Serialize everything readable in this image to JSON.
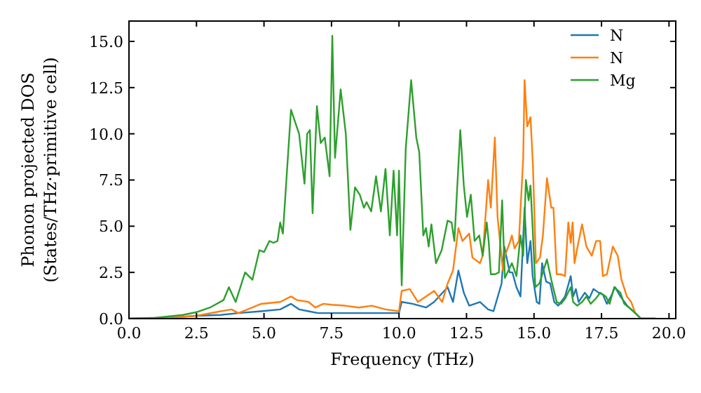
{
  "chart_data": {
    "type": "line",
    "xlabel": "Frequency (THz)",
    "ylabel": "Phonon projected DOS\n(States/THz·primitive cell)",
    "xlim": [
      0,
      20.25
    ],
    "ylim": [
      0,
      16.1
    ],
    "xticks": [
      {
        "value": 0,
        "label": "0.0"
      },
      {
        "value": 2.5,
        "label": "2.5"
      },
      {
        "value": 5,
        "label": "5.0"
      },
      {
        "value": 7.5,
        "label": "7.5"
      },
      {
        "value": 10,
        "label": "10.0"
      },
      {
        "value": 12.5,
        "label": "12.5"
      },
      {
        "value": 15,
        "label": "15.0"
      },
      {
        "value": 17.5,
        "label": "17.5"
      },
      {
        "value": 20,
        "label": "20.0"
      }
    ],
    "yticks": [
      {
        "value": 0,
        "label": "0.0"
      },
      {
        "value": 2.5,
        "label": "2.5"
      },
      {
        "value": 5,
        "label": "5.0"
      },
      {
        "value": 7.5,
        "label": "7.5"
      },
      {
        "value": 10,
        "label": "10.0"
      },
      {
        "value": 12.5,
        "label": "12.5"
      },
      {
        "value": 15,
        "label": "15.0"
      }
    ],
    "legend": "top right",
    "grid": false,
    "series": [
      {
        "name": "N",
        "color": "#1f77b4",
        "x": [
          0,
          1.5,
          2.5,
          3.4,
          4.05,
          4.9,
          5.6,
          6.0,
          6.3,
          6.65,
          7.0,
          7.5,
          8.0,
          9.0,
          10.0,
          10.1,
          10.5,
          11.0,
          11.3,
          11.8,
          12.0,
          12.2,
          12.4,
          12.6,
          13.0,
          13.3,
          13.5,
          13.8,
          13.9,
          14.1,
          14.2,
          14.35,
          14.5,
          14.65,
          14.75,
          14.87,
          14.95,
          15.1,
          15.2,
          15.3,
          15.45,
          15.6,
          15.75,
          15.9,
          16.0,
          16.15,
          16.36,
          16.45,
          16.55,
          16.65,
          16.88,
          17.05,
          17.2,
          17.4,
          17.55,
          17.7,
          17.85,
          18.0,
          18.2,
          18.45,
          18.75,
          18.96,
          19.5
        ],
        "values": [
          0,
          0.05,
          0.15,
          0.2,
          0.3,
          0.4,
          0.5,
          0.8,
          0.5,
          0.4,
          0.3,
          0.3,
          0.3,
          0.3,
          0.3,
          0.9,
          0.8,
          0.6,
          0.9,
          1.7,
          0.9,
          2.6,
          1.4,
          0.7,
          0.9,
          0.5,
          0.4,
          1.9,
          3.9,
          2.5,
          2.5,
          1.7,
          1.2,
          6.0,
          3.0,
          4.2,
          2.3,
          0.9,
          0.8,
          3.0,
          2.0,
          1.9,
          0.9,
          0.7,
          0.9,
          1.2,
          2.3,
          1.2,
          1.6,
          0.9,
          1.4,
          1.1,
          1.6,
          1.4,
          1.3,
          0.8,
          1.2,
          1.7,
          1.2,
          0.7,
          0.3,
          0,
          0
        ]
      },
      {
        "name": "N",
        "color": "#ff7f0e",
        "x": [
          0,
          1.5,
          2.5,
          3.4,
          3.8,
          4.05,
          4.57,
          4.9,
          5.6,
          6.0,
          6.23,
          6.65,
          6.9,
          7.2,
          7.5,
          8.0,
          8.5,
          9.0,
          9.5,
          10.0,
          10.1,
          10.4,
          10.7,
          11.0,
          11.3,
          11.6,
          11.8,
          12.0,
          12.2,
          12.35,
          12.6,
          12.72,
          13.0,
          13.1,
          13.3,
          13.4,
          13.55,
          13.65,
          13.85,
          13.92,
          14.1,
          14.18,
          14.28,
          14.44,
          14.6,
          14.65,
          14.75,
          14.87,
          14.96,
          15.07,
          15.22,
          15.33,
          15.48,
          15.64,
          15.72,
          15.84,
          16.0,
          16.15,
          16.27,
          16.36,
          16.43,
          16.5,
          16.6,
          16.78,
          16.94,
          17.14,
          17.3,
          17.45,
          17.55,
          17.7,
          17.92,
          18.1,
          18.24,
          18.44,
          18.6,
          18.75,
          18.96,
          19.5
        ],
        "values": [
          0,
          0.05,
          0.15,
          0.4,
          0.5,
          0.3,
          0.6,
          0.8,
          0.9,
          1.2,
          1.0,
          0.9,
          0.6,
          0.8,
          0.75,
          0.7,
          0.6,
          0.7,
          0.5,
          0.4,
          1.5,
          1.6,
          0.9,
          1.2,
          1.5,
          0.9,
          1.9,
          2.6,
          4.9,
          4.2,
          4.6,
          3.3,
          3.0,
          3.4,
          7.5,
          6.0,
          9.8,
          5.5,
          2.6,
          3.4,
          4.1,
          4.5,
          3.8,
          4.2,
          8.7,
          12.9,
          10.4,
          10.9,
          8.3,
          3.0,
          3.3,
          4.5,
          7.6,
          6.0,
          6.0,
          2.4,
          2.4,
          2.3,
          5.2,
          4.1,
          5.2,
          3.0,
          3.8,
          5.1,
          3.9,
          3.4,
          4.2,
          4.2,
          2.3,
          2.4,
          3.9,
          3.4,
          2.1,
          1.2,
          0.9,
          0.3,
          0,
          0
        ]
      },
      {
        "name": "Mg",
        "color": "#2ca02c",
        "x": [
          0,
          1,
          2,
          2.5,
          3,
          3.5,
          3.7,
          3.95,
          4.3,
          4.57,
          4.83,
          5.0,
          5.2,
          5.35,
          5.5,
          5.6,
          5.7,
          6.0,
          6.3,
          6.5,
          6.6,
          6.7,
          6.8,
          6.96,
          7.1,
          7.25,
          7.43,
          7.53,
          7.63,
          7.84,
          8.03,
          8.2,
          8.37,
          8.55,
          8.7,
          8.8,
          8.97,
          9.15,
          9.33,
          9.5,
          9.66,
          9.8,
          9.93,
          10.0,
          10.1,
          10.25,
          10.45,
          10.64,
          10.75,
          10.9,
          11.0,
          11.1,
          11.2,
          11.37,
          11.58,
          11.8,
          11.95,
          12.05,
          12.27,
          12.4,
          12.52,
          12.66,
          12.8,
          12.97,
          13.1,
          13.25,
          13.32,
          13.4,
          13.56,
          13.7,
          13.82,
          13.92,
          14.18,
          14.35,
          14.5,
          14.6,
          14.7,
          14.8,
          14.87,
          14.95,
          15.05,
          15.2,
          15.33,
          15.48,
          15.64,
          15.84,
          16.0,
          16.16,
          16.36,
          16.45,
          16.6,
          16.78,
          16.94,
          17.1,
          17.3,
          17.45,
          17.66,
          17.8,
          17.97,
          18.2,
          18.34,
          18.6,
          18.75,
          18.96,
          19.5
        ],
        "values": [
          0,
          0.05,
          0.2,
          0.35,
          0.6,
          1.0,
          1.7,
          0.9,
          2.5,
          2.1,
          3.7,
          3.6,
          4.2,
          4.1,
          4.2,
          5.2,
          4.6,
          11.3,
          10.0,
          7.3,
          10.0,
          10.2,
          5.7,
          11.5,
          9.5,
          9.8,
          7.7,
          15.3,
          8.7,
          12.4,
          10.0,
          4.8,
          7.1,
          6.7,
          6.0,
          6.3,
          5.8,
          7.7,
          5.8,
          8.1,
          4.5,
          8.0,
          4.5,
          8.0,
          1.8,
          9.2,
          12.9,
          9.8,
          9.0,
          4.5,
          4.9,
          3.9,
          5.1,
          3.0,
          3.7,
          5.3,
          5.2,
          4.2,
          10.2,
          7.2,
          5.5,
          6.7,
          4.2,
          4.5,
          3.4,
          5.2,
          4.2,
          2.4,
          2.4,
          2.5,
          6.4,
          2.2,
          3.0,
          2.3,
          4.5,
          3.4,
          7.5,
          6.4,
          7.2,
          4.9,
          1.7,
          1.9,
          2.5,
          3.2,
          2.1,
          0.9,
          0.8,
          1.1,
          1.7,
          0.9,
          0.7,
          0.9,
          1.2,
          0.8,
          1.1,
          1.4,
          1.2,
          0.8,
          1.7,
          1.4,
          0.8,
          0.5,
          0.3,
          0,
          0
        ]
      }
    ]
  }
}
